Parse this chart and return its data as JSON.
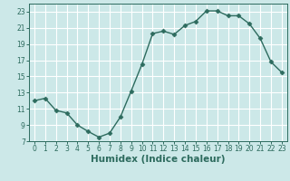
{
  "x": [
    0,
    1,
    2,
    3,
    4,
    5,
    6,
    7,
    8,
    9,
    10,
    11,
    12,
    13,
    14,
    15,
    16,
    17,
    18,
    19,
    20,
    21,
    22,
    23
  ],
  "y": [
    12.0,
    12.3,
    10.8,
    10.5,
    9.0,
    8.2,
    7.5,
    8.0,
    10.0,
    13.2,
    16.5,
    20.3,
    20.6,
    20.2,
    21.3,
    21.8,
    23.1,
    23.1,
    22.5,
    22.5,
    21.5,
    19.7,
    16.8,
    15.5
  ],
  "line_color": "#2d6b5e",
  "marker": "D",
  "marker_size": 2.5,
  "bg_color": "#cce8e8",
  "grid_color": "#ffffff",
  "xlabel": "Humidex (Indice chaleur)",
  "xlim": [
    -0.5,
    23.5
  ],
  "ylim": [
    7,
    24
  ],
  "yticks": [
    7,
    9,
    11,
    13,
    15,
    17,
    19,
    21,
    23
  ],
  "xticks": [
    0,
    1,
    2,
    3,
    4,
    5,
    6,
    7,
    8,
    9,
    10,
    11,
    12,
    13,
    14,
    15,
    16,
    17,
    18,
    19,
    20,
    21,
    22,
    23
  ],
  "tick_fontsize": 5.5,
  "label_fontsize": 7.5
}
